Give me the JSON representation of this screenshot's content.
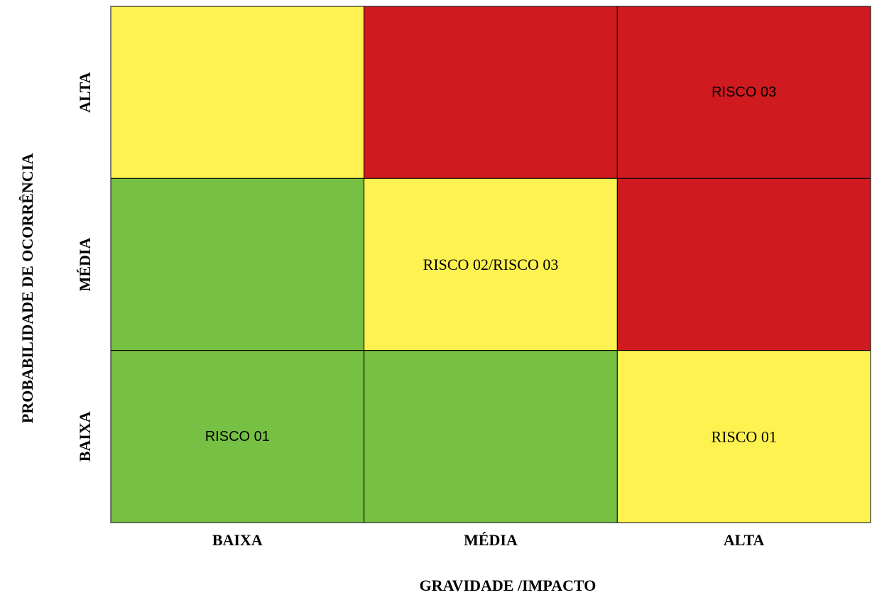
{
  "chart_data": {
    "type": "heatmap",
    "title": "",
    "xlabel": "GRAVIDADE /IMPACTO",
    "ylabel": "PROBABILIDADE DE OCORRÊNCIA",
    "x_categories": [
      "BAIXA",
      "MÉDIA",
      "ALTA"
    ],
    "y_categories": [
      "BAIXA",
      "MÉDIA",
      "ALTA"
    ],
    "grid": true,
    "level_colors": {
      "low": "#76c044",
      "medium": "#fef250",
      "high": "#cf1a1f"
    },
    "cells": [
      {
        "x": "BAIXA",
        "y": "ALTA",
        "level": "medium",
        "label": "",
        "font": "serif"
      },
      {
        "x": "MÉDIA",
        "y": "ALTA",
        "level": "high",
        "label": "",
        "font": "serif"
      },
      {
        "x": "ALTA",
        "y": "ALTA",
        "level": "high",
        "label": "RISCO 03",
        "font": "sans"
      },
      {
        "x": "BAIXA",
        "y": "MÉDIA",
        "level": "low",
        "label": "",
        "font": "serif"
      },
      {
        "x": "MÉDIA",
        "y": "MÉDIA",
        "level": "medium",
        "label": "RISCO 02/RISCO 03",
        "font": "serif"
      },
      {
        "x": "ALTA",
        "y": "MÉDIA",
        "level": "high",
        "label": "",
        "font": "serif"
      },
      {
        "x": "BAIXA",
        "y": "BAIXA",
        "level": "low",
        "label": "RISCO 01",
        "font": "sans"
      },
      {
        "x": "MÉDIA",
        "y": "BAIXA",
        "level": "low",
        "label": "",
        "font": "serif"
      },
      {
        "x": "ALTA",
        "y": "BAIXA",
        "level": "medium",
        "label": "RISCO 01",
        "font": "serif"
      }
    ]
  }
}
